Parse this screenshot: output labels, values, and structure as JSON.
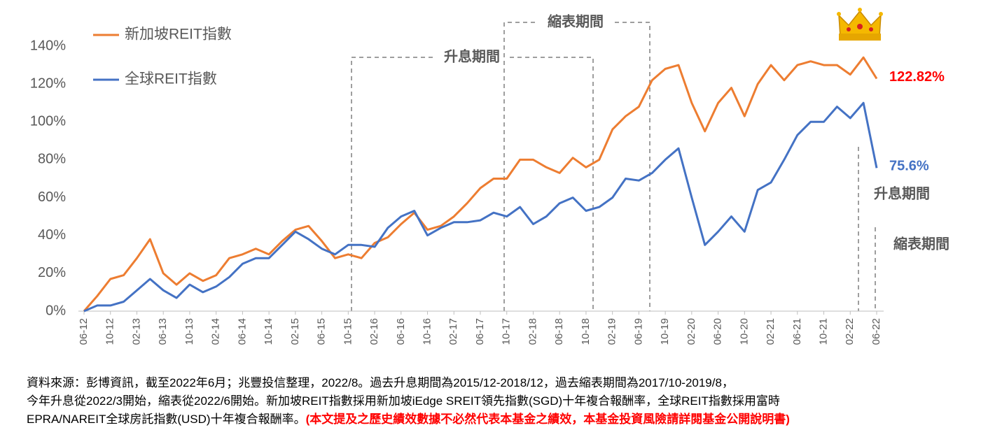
{
  "chart_data": {
    "type": "line",
    "categories": [
      "06-12",
      null,
      "10-12",
      null,
      "02-13",
      null,
      "06-13",
      null,
      "10-13",
      null,
      "02-14",
      null,
      "06-14",
      null,
      "10-14",
      null,
      "02-15",
      null,
      "06-15",
      null,
      "10-15",
      null,
      "02-16",
      null,
      "06-16",
      null,
      "10-16",
      null,
      "02-17",
      null,
      "06-17",
      null,
      "10-17",
      null,
      "02-18",
      null,
      "06-18",
      null,
      "10-18",
      null,
      "02-19",
      null,
      "06-19",
      null,
      "10-19",
      null,
      "02-20",
      null,
      "06-20",
      null,
      "10-20",
      null,
      "02-21",
      null,
      "06-21",
      null,
      "10-21",
      null,
      "02-22",
      null,
      "06-22"
    ],
    "series": [
      {
        "name": "新加坡REIT指數",
        "color": "#ED7D31",
        "label_color": "#FF0000",
        "values": [
          0,
          8,
          17,
          19,
          28,
          38,
          20,
          14,
          20,
          16,
          19,
          28,
          30,
          33,
          30,
          37,
          43,
          45,
          37,
          28,
          30,
          28,
          36,
          39,
          46,
          52,
          43,
          45,
          50,
          57,
          65,
          70,
          70,
          80,
          80,
          76,
          73,
          81,
          76,
          80,
          96,
          103,
          108,
          122,
          128,
          130,
          110,
          95,
          110,
          118,
          103,
          120,
          130,
          122,
          130,
          132,
          130,
          130,
          125,
          134,
          122.82
        ],
        "value_labels": [
          null,
          null,
          null,
          null,
          null,
          null,
          null,
          null,
          null,
          null,
          null,
          null,
          null,
          null,
          null,
          null,
          null,
          null,
          null,
          null,
          null,
          null,
          null,
          null,
          null,
          null,
          null,
          null,
          null,
          null,
          null,
          null,
          null,
          null,
          null,
          null,
          null,
          null,
          null,
          null,
          null,
          null,
          null,
          null,
          null,
          null,
          null,
          null,
          null,
          null,
          null,
          null,
          null,
          null,
          null,
          null,
          null,
          null,
          null,
          null,
          "122.82%"
        ]
      },
      {
        "name": "全球REIT指數",
        "color": "#4472C4",
        "label_color": "#4472C4",
        "values": [
          0,
          3,
          3,
          5,
          11,
          17,
          11,
          7,
          14,
          10,
          13,
          18,
          25,
          28,
          28,
          35,
          42,
          38,
          33,
          30,
          35,
          35,
          34,
          44,
          50,
          53,
          40,
          44,
          47,
          47,
          48,
          52,
          50,
          55,
          46,
          50,
          57,
          60,
          53,
          55,
          60,
          70,
          69,
          73,
          80,
          86,
          60,
          35,
          42,
          50,
          42,
          64,
          68,
          80,
          93,
          100,
          100,
          108,
          102,
          110,
          75.6
        ],
        "value_labels": [
          null,
          null,
          null,
          null,
          null,
          null,
          null,
          null,
          null,
          null,
          null,
          null,
          null,
          null,
          null,
          null,
          null,
          null,
          null,
          null,
          null,
          null,
          null,
          null,
          null,
          null,
          null,
          null,
          null,
          null,
          null,
          null,
          null,
          null,
          null,
          null,
          null,
          null,
          null,
          null,
          null,
          null,
          null,
          null,
          null,
          null,
          null,
          null,
          null,
          null,
          null,
          null,
          null,
          null,
          null,
          null,
          null,
          null,
          null,
          null,
          "75.6%"
        ]
      }
    ],
    "ylim": [
      0,
      140
    ],
    "yticks": [
      {
        "value": 0,
        "label": "0%"
      },
      {
        "value": 20,
        "label": "20%"
      },
      {
        "value": 40,
        "label": "40%"
      },
      {
        "value": 60,
        "label": "60%"
      },
      {
        "value": 80,
        "label": "80%"
      },
      {
        "value": 100,
        "label": "100%"
      },
      {
        "value": 120,
        "label": "120%"
      },
      {
        "value": 140,
        "label": "140%"
      }
    ],
    "grid": false,
    "legend": "upper left",
    "annotations": [
      "縮表期間",
      "升息期間",
      "升息期間",
      "縮表期間"
    ],
    "notes": [
      "資料來源：彭博資訊，截至2022年6月；兆豐投信整理，2022/8。過去升息期間為2015/12-2018/12，過去縮表期間為2017/10-2019/8，",
      "今年升息從2022/3開始，縮表從2022/6開始。新加坡REIT指數採用新加坡iEdge SREIT領先指數(SGD)十年複合報酬率，全球REIT指數採用富時",
      "EPRA/NAREIT全球房託指數(USD)十年複合報酬率。"
    ],
    "disclaimer": "(本文提及之歷史績效數據不必然代表本基金之績效，本基金投資風險請詳閱基金公開說明書)"
  }
}
